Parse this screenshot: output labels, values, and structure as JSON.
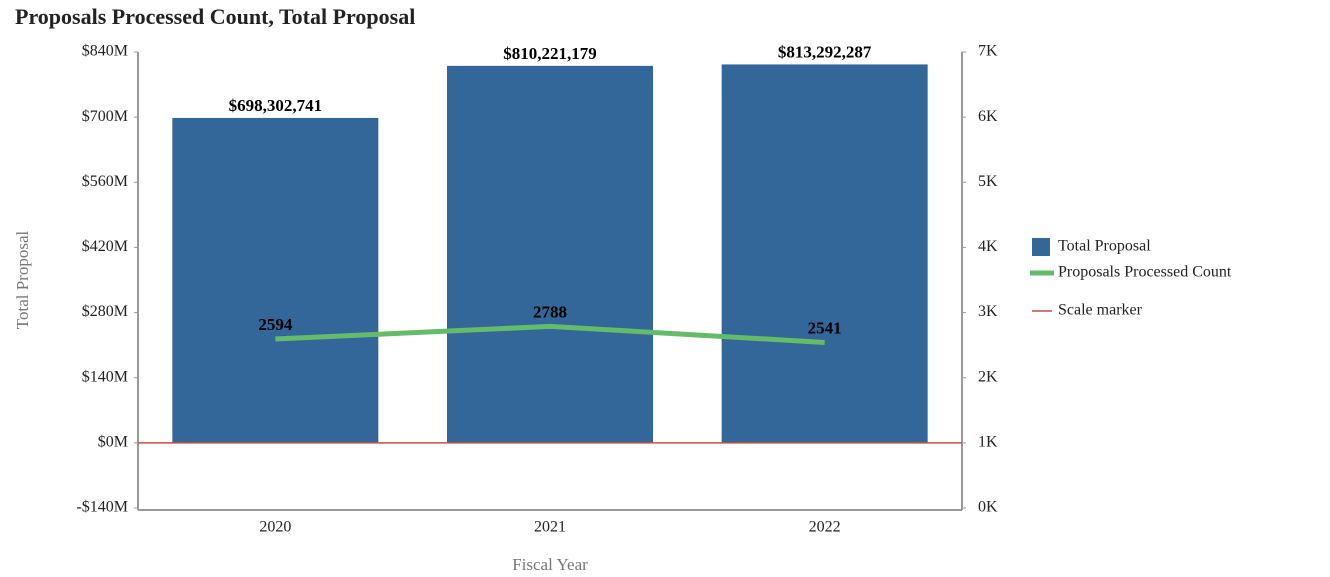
{
  "chart_data": {
    "type": "bar_line",
    "title": "Proposals Processed Count, Total Proposal",
    "x_label": "Fiscal Year",
    "y_label": "Total Proposal",
    "categories": [
      "2020",
      "2021",
      "2022"
    ],
    "series": [
      {
        "name": "Total Proposal",
        "type": "bar",
        "color": "#336699",
        "values": [
          698302741,
          810221179,
          813292287
        ],
        "value_labels": [
          "$698,302,741",
          "$810,221,179",
          "$813,292,287"
        ]
      },
      {
        "name": "Proposals Processed Count",
        "type": "line",
        "axis": "y2",
        "color": "#66bb6a",
        "values": [
          2594,
          2788,
          2541
        ]
      }
    ],
    "reference_lines": [
      {
        "name": "Scale marker",
        "value": 0,
        "color": "#c0504d"
      }
    ],
    "ylim": [
      -140000000,
      840000000
    ],
    "yticks": [
      {
        "value": -140000000,
        "label": "-$140M"
      },
      {
        "value": 0,
        "label": "$0M"
      },
      {
        "value": 140000000,
        "label": "$140M"
      },
      {
        "value": 280000000,
        "label": "$280M"
      },
      {
        "value": 420000000,
        "label": "$420M"
      },
      {
        "value": 560000000,
        "label": "$560M"
      },
      {
        "value": 700000000,
        "label": "$700M"
      },
      {
        "value": 840000000,
        "label": "$840M"
      }
    ],
    "y2lim": [
      0,
      7000
    ],
    "y2ticks": [
      {
        "value": 0,
        "label": "0K"
      },
      {
        "value": 1000,
        "label": "1K"
      },
      {
        "value": 2000,
        "label": "2K"
      },
      {
        "value": 3000,
        "label": "3K"
      },
      {
        "value": 4000,
        "label": "4K"
      },
      {
        "value": 5000,
        "label": "5K"
      },
      {
        "value": 6000,
        "label": "6K"
      },
      {
        "value": 7000,
        "label": "7K"
      }
    ],
    "legend": "right"
  }
}
